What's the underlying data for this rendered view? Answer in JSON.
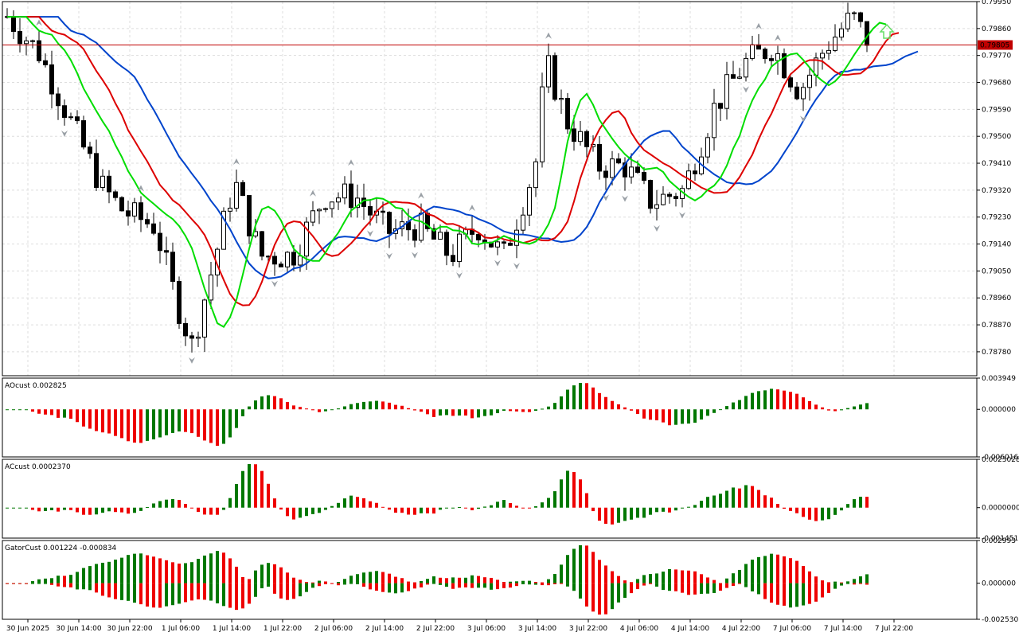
{
  "chart_data": [
    {
      "type": "candlestick",
      "panel": "price",
      "ylim": [
        0.787,
        0.7995
      ],
      "y_ticks": [
        "0.79950",
        "0.79860",
        "0.79770",
        "0.79680",
        "0.79590",
        "0.79500",
        "0.79410",
        "0.79320",
        "0.79230",
        "0.79140",
        "0.79050",
        "0.78960",
        "0.78870",
        "0.78780"
      ],
      "current_price": "0.79805",
      "current_price_value": 0.79805,
      "x_labels": [
        "30 Jun 2025",
        "30 Jun 14:00",
        "30 Jun 22:00",
        "1 Jul 06:00",
        "1 Jul 14:00",
        "1 Jul 22:00",
        "2 Jul 06:00",
        "2 Jul 14:00",
        "2 Jul 22:00",
        "3 Jul 06:00",
        "3 Jul 14:00",
        "3 Jul 22:00",
        "4 Jul 06:00",
        "4 Jul 14:00",
        "4 Jul 22:00",
        "7 Jul 06:00",
        "7 Jul 14:00",
        "7 Jul 22:00"
      ],
      "alligator_color_lips": "#00dd00",
      "alligator_color_teeth": "#dd0000",
      "alligator_color_jaw": "#0044cc"
    },
    {
      "type": "histogram",
      "panel": "AOcust",
      "label": "AOcust 0.002825",
      "y_ticks": [
        "0.003949",
        "0.000000",
        "-0.006016"
      ],
      "ylim": [
        -0.006016,
        0.003949
      ]
    },
    {
      "type": "histogram",
      "panel": "ACcust",
      "label": "ACcust 0.0002370",
      "y_ticks": [
        "0.0023028",
        "0.0000000",
        "-0.0014511"
      ],
      "ylim": [
        -0.0014511,
        0.0023028
      ]
    },
    {
      "type": "histogram",
      "panel": "GatorCust",
      "label": "GatorCust 0.001224 -0.000834",
      "y_ticks": [
        "0.002993",
        "0.000000",
        "-0.002530"
      ],
      "ylim": [
        -0.00253,
        0.002993
      ]
    }
  ],
  "colors": {
    "up": "#007700",
    "down": "#ee0000",
    "grid": "#dddddd",
    "price_line": "#c00000",
    "arrow": "#9aa0a6",
    "signal": "#66dd66"
  }
}
